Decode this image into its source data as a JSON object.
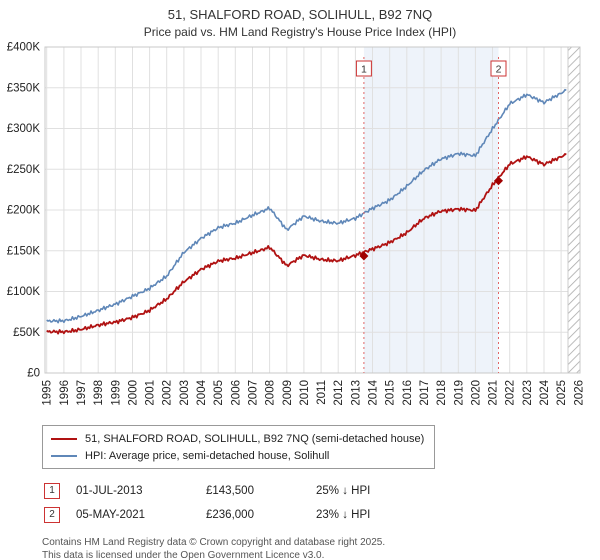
{
  "chart_data": {
    "type": "line",
    "title": "51, SHALFORD ROAD, SOLIHULL, B92 7NQ",
    "subtitle": "Price paid vs. HM Land Registry's House Price Index (HPI)",
    "xlabel": "",
    "ylabel": "",
    "ylim": [
      0,
      400000
    ],
    "xlim": [
      1994.9,
      2026.1
    ],
    "grid": true,
    "legend_position": "bottom",
    "x": [
      1995,
      1996,
      1997,
      1998,
      1999,
      2000,
      2001,
      2002,
      2003,
      2004,
      2005,
      2006,
      2007,
      2008,
      2009,
      2010,
      2011,
      2012,
      2013,
      2014,
      2015,
      2016,
      2017,
      2018,
      2019,
      2020,
      2021,
      2022,
      2023,
      2024,
      2025,
      2025.3
    ],
    "series": [
      {
        "name": "51, SHALFORD ROAD, SOLIHULL, B92 7NQ (semi-detached house)",
        "color": "#b01212",
        "values": [
          50000,
          51000,
          54000,
          58000,
          62000,
          69000,
          77000,
          90000,
          112000,
          128000,
          137000,
          140000,
          148000,
          155000,
          131000,
          144000,
          140000,
          138000,
          143500,
          152000,
          161000,
          172000,
          189000,
          199000,
          202000,
          199000,
          230000,
          257000,
          266000,
          255000,
          265000,
          268000
        ]
      },
      {
        "name": "HPI: Average price, semi-detached house, Solihull",
        "color": "#5f87b8",
        "values": [
          63000,
          64500,
          70000,
          76000,
          84000,
          95000,
          104000,
          118000,
          148000,
          166000,
          178000,
          183000,
          194000,
          203000,
          175000,
          192000,
          187000,
          184000,
          189000,
          202000,
          213000,
          229000,
          248000,
          263000,
          270000,
          266000,
          299000,
          331000,
          342000,
          331000,
          343000,
          347000
        ]
      }
    ],
    "xticks": [
      1995,
      1996,
      1997,
      1998,
      1999,
      2000,
      2001,
      2002,
      2003,
      2004,
      2005,
      2006,
      2007,
      2008,
      2009,
      2010,
      2011,
      2012,
      2013,
      2014,
      2015,
      2016,
      2017,
      2018,
      2019,
      2020,
      2021,
      2022,
      2023,
      2024,
      2025,
      2026
    ],
    "yticks_gbp": [
      0,
      50000,
      100000,
      150000,
      200000,
      250000,
      300000,
      350000,
      400000
    ],
    "ytick_labels": [
      "£0",
      "£50K",
      "£100K",
      "£150K",
      "£200K",
      "£250K",
      "£300K",
      "£350K",
      "£400K"
    ],
    "shaded_span": {
      "from": 2013.5,
      "to": 2021.35,
      "color": "#eef3fa"
    },
    "hatched_span": {
      "from": 2025.4,
      "to": 2026.1
    },
    "sales": [
      {
        "num": "1",
        "x": 2013.5,
        "price_gbp": 143500,
        "date": "01-JUL-2013",
        "price_label": "£143,500",
        "hpi_label": "25% ↓ HPI"
      },
      {
        "num": "2",
        "x": 2021.35,
        "price_gbp": 236000,
        "date": "05-MAY-2021",
        "price_label": "£236,000",
        "hpi_label": "23% ↓ HPI"
      }
    ]
  },
  "footer": {
    "line1": "Contains HM Land Registry data © Crown copyright and database right 2025.",
    "line2": "This data is licensed under the Open Government Licence v3.0."
  }
}
